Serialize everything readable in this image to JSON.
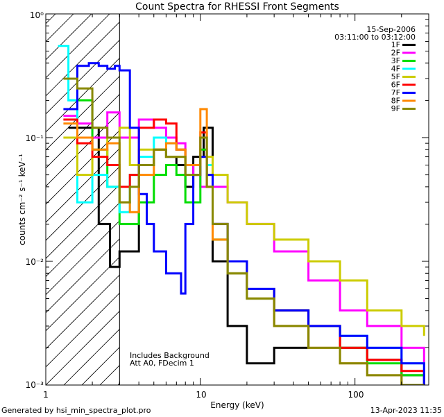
{
  "chart_data": {
    "type": "line",
    "title": "Count Spectra for RHESSI Front Segments",
    "xlabel": "Energy (keV)",
    "ylabel": "counts cm⁻² s⁻¹ keV⁻¹",
    "xscale": "log",
    "yscale": "log",
    "xlim": [
      1,
      300
    ],
    "ylim": [
      0.001,
      1
    ],
    "x_ticks": [
      {
        "value": 1,
        "label": "1"
      },
      {
        "value": 10,
        "label": "10"
      },
      {
        "value": 100,
        "label": "100"
      }
    ],
    "y_ticks": [
      {
        "value": 1,
        "label": "10⁰"
      },
      {
        "value": 0.1,
        "label": "10⁻¹"
      },
      {
        "value": 0.01,
        "label": "10⁻²"
      },
      {
        "value": 0.001,
        "label": "10⁻³"
      }
    ],
    "info_lines": [
      "15-Sep-2006",
      "03:11:00 to 03:12:00"
    ],
    "notes": [
      "Includes Background",
      "Att A0, FDecim 1"
    ],
    "hatch_region_upper_kev": 3,
    "legend_position": "top-right",
    "series": [
      {
        "name": "1F",
        "color": "#000000",
        "energy_kev": [
          1.4,
          2.2,
          2.6,
          3.0,
          4.0,
          5.0,
          6.0,
          7.0,
          8.0,
          9.0,
          10.5,
          12.0,
          15.0,
          20.0,
          30.0,
          50.0,
          80.0,
          120.0,
          200.0,
          280.0
        ],
        "counts": [
          0.12,
          0.02,
          0.009,
          0.012,
          0.06,
          0.08,
          0.07,
          0.06,
          0.04,
          0.07,
          0.12,
          0.01,
          0.003,
          0.0015,
          0.002,
          0.003,
          0.002,
          0.0016,
          0.0012,
          0.001
        ]
      },
      {
        "name": "2F",
        "color": "#ff00ff",
        "energy_kev": [
          1.3,
          1.6,
          2.0,
          2.5,
          3.0,
          3.5,
          4.0,
          5.0,
          6.0,
          7.0,
          8.0,
          9.0,
          10.0,
          11.0,
          12.0,
          15.0,
          20.0,
          30.0,
          50.0,
          80.0,
          120.0,
          200.0,
          280.0
        ],
        "counts": [
          0.15,
          0.13,
          0.1,
          0.16,
          0.1,
          0.1,
          0.14,
          0.12,
          0.1,
          0.09,
          0.06,
          0.05,
          0.04,
          0.06,
          0.04,
          0.03,
          0.02,
          0.012,
          0.007,
          0.004,
          0.003,
          0.002,
          0.0015
        ]
      },
      {
        "name": "3F",
        "color": "#00dd00",
        "energy_kev": [
          1.4,
          2.0,
          2.5,
          3.0,
          4.0,
          5.0,
          6.0,
          7.0,
          8.0,
          10.0,
          11.0,
          12.0,
          15.0,
          20.0,
          30.0,
          50.0,
          80.0,
          120.0,
          200.0,
          280.0
        ],
        "counts": [
          0.2,
          0.08,
          0.04,
          0.02,
          0.03,
          0.05,
          0.06,
          0.05,
          0.03,
          0.08,
          0.05,
          0.015,
          0.01,
          0.006,
          0.004,
          0.003,
          0.002,
          0.0015,
          0.0012,
          0.001
        ]
      },
      {
        "name": "4F",
        "color": "#00ffff",
        "energy_kev": [
          1.2,
          1.4,
          1.6,
          2.0,
          2.5,
          3.0,
          3.5,
          4.0,
          5.0,
          6.0,
          7.0,
          8.0,
          10.0,
          11.0,
          12.0,
          15.0,
          20.0,
          30.0,
          50.0,
          80.0,
          120.0,
          200.0,
          280.0
        ],
        "counts": [
          0.55,
          0.2,
          0.03,
          0.05,
          0.04,
          0.025,
          0.05,
          0.07,
          0.1,
          0.09,
          0.08,
          0.06,
          0.1,
          0.06,
          0.02,
          0.008,
          0.005,
          0.004,
          0.003,
          0.0025,
          0.002,
          0.0015,
          0.001
        ]
      },
      {
        "name": "5F",
        "color": "#cccc00",
        "energy_kev": [
          1.3,
          1.6,
          2.0,
          2.5,
          3.0,
          3.5,
          4.0,
          5.0,
          6.0,
          8.0,
          10.0,
          12.0,
          15.0,
          20.0,
          30.0,
          50.0,
          80.0,
          120.0,
          200.0,
          280.0
        ],
        "counts": [
          0.1,
          0.05,
          0.07,
          0.1,
          0.12,
          0.06,
          0.08,
          0.08,
          0.07,
          0.06,
          0.07,
          0.05,
          0.03,
          0.02,
          0.015,
          0.01,
          0.007,
          0.004,
          0.003,
          0.0025
        ]
      },
      {
        "name": "6F",
        "color": "#ff0000",
        "energy_kev": [
          1.3,
          1.6,
          2.0,
          2.5,
          3.0,
          3.5,
          4.0,
          5.0,
          6.0,
          7.0,
          8.0,
          10.0,
          11.0,
          12.0,
          15.0,
          20.0,
          30.0,
          50.0,
          80.0,
          120.0,
          200.0,
          280.0
        ],
        "counts": [
          0.14,
          0.09,
          0.07,
          0.06,
          0.04,
          0.05,
          0.12,
          0.14,
          0.13,
          0.08,
          0.06,
          0.11,
          0.04,
          0.02,
          0.01,
          0.006,
          0.004,
          0.003,
          0.002,
          0.0016,
          0.0013,
          0.001
        ]
      },
      {
        "name": "7F",
        "color": "#0000ff",
        "energy_kev": [
          1.3,
          1.6,
          1.9,
          2.2,
          2.5,
          2.8,
          3.0,
          3.5,
          4.0,
          4.5,
          5.0,
          6.0,
          7.0,
          7.5,
          8.0,
          9.0,
          10.0,
          11.0,
          12.0,
          15.0,
          20.0,
          30.0,
          50.0,
          80.0,
          120.0,
          200.0,
          280.0
        ],
        "counts": [
          0.17,
          0.38,
          0.4,
          0.38,
          0.36,
          0.38,
          0.35,
          0.12,
          0.035,
          0.02,
          0.012,
          0.008,
          0.008,
          0.0055,
          0.02,
          0.05,
          0.07,
          0.05,
          0.02,
          0.01,
          0.006,
          0.004,
          0.003,
          0.0025,
          0.002,
          0.0015,
          0.001
        ]
      },
      {
        "name": "8F",
        "color": "#ff8800",
        "energy_kev": [
          1.3,
          1.6,
          2.0,
          2.5,
          3.0,
          3.5,
          4.0,
          5.0,
          6.0,
          7.0,
          8.0,
          10.0,
          11.0,
          12.0,
          15.0,
          20.0,
          30.0,
          50.0,
          80.0,
          120.0,
          200.0,
          280.0
        ],
        "counts": [
          0.13,
          0.1,
          0.08,
          0.09,
          0.03,
          0.025,
          0.05,
          0.08,
          0.09,
          0.08,
          0.06,
          0.17,
          0.04,
          0.015,
          0.008,
          0.005,
          0.003,
          0.002,
          0.0015,
          0.0012,
          0.001,
          0.001
        ]
      },
      {
        "name": "9F",
        "color": "#888800",
        "energy_kev": [
          1.3,
          1.6,
          2.0,
          2.5,
          3.0,
          3.5,
          4.0,
          5.0,
          6.0,
          8.0,
          10.0,
          11.0,
          12.0,
          15.0,
          20.0,
          30.0,
          50.0,
          80.0,
          120.0,
          200.0,
          280.0
        ],
        "counts": [
          0.3,
          0.25,
          0.12,
          0.1,
          0.03,
          0.04,
          0.06,
          0.08,
          0.07,
          0.05,
          0.1,
          0.04,
          0.02,
          0.008,
          0.005,
          0.003,
          0.002,
          0.0015,
          0.0012,
          0.001,
          0.001
        ]
      }
    ]
  },
  "footer": {
    "generated_by": "Generated by hsi_min_spectra_plot.pro",
    "timestamp": "13-Apr-2023 11:35"
  }
}
